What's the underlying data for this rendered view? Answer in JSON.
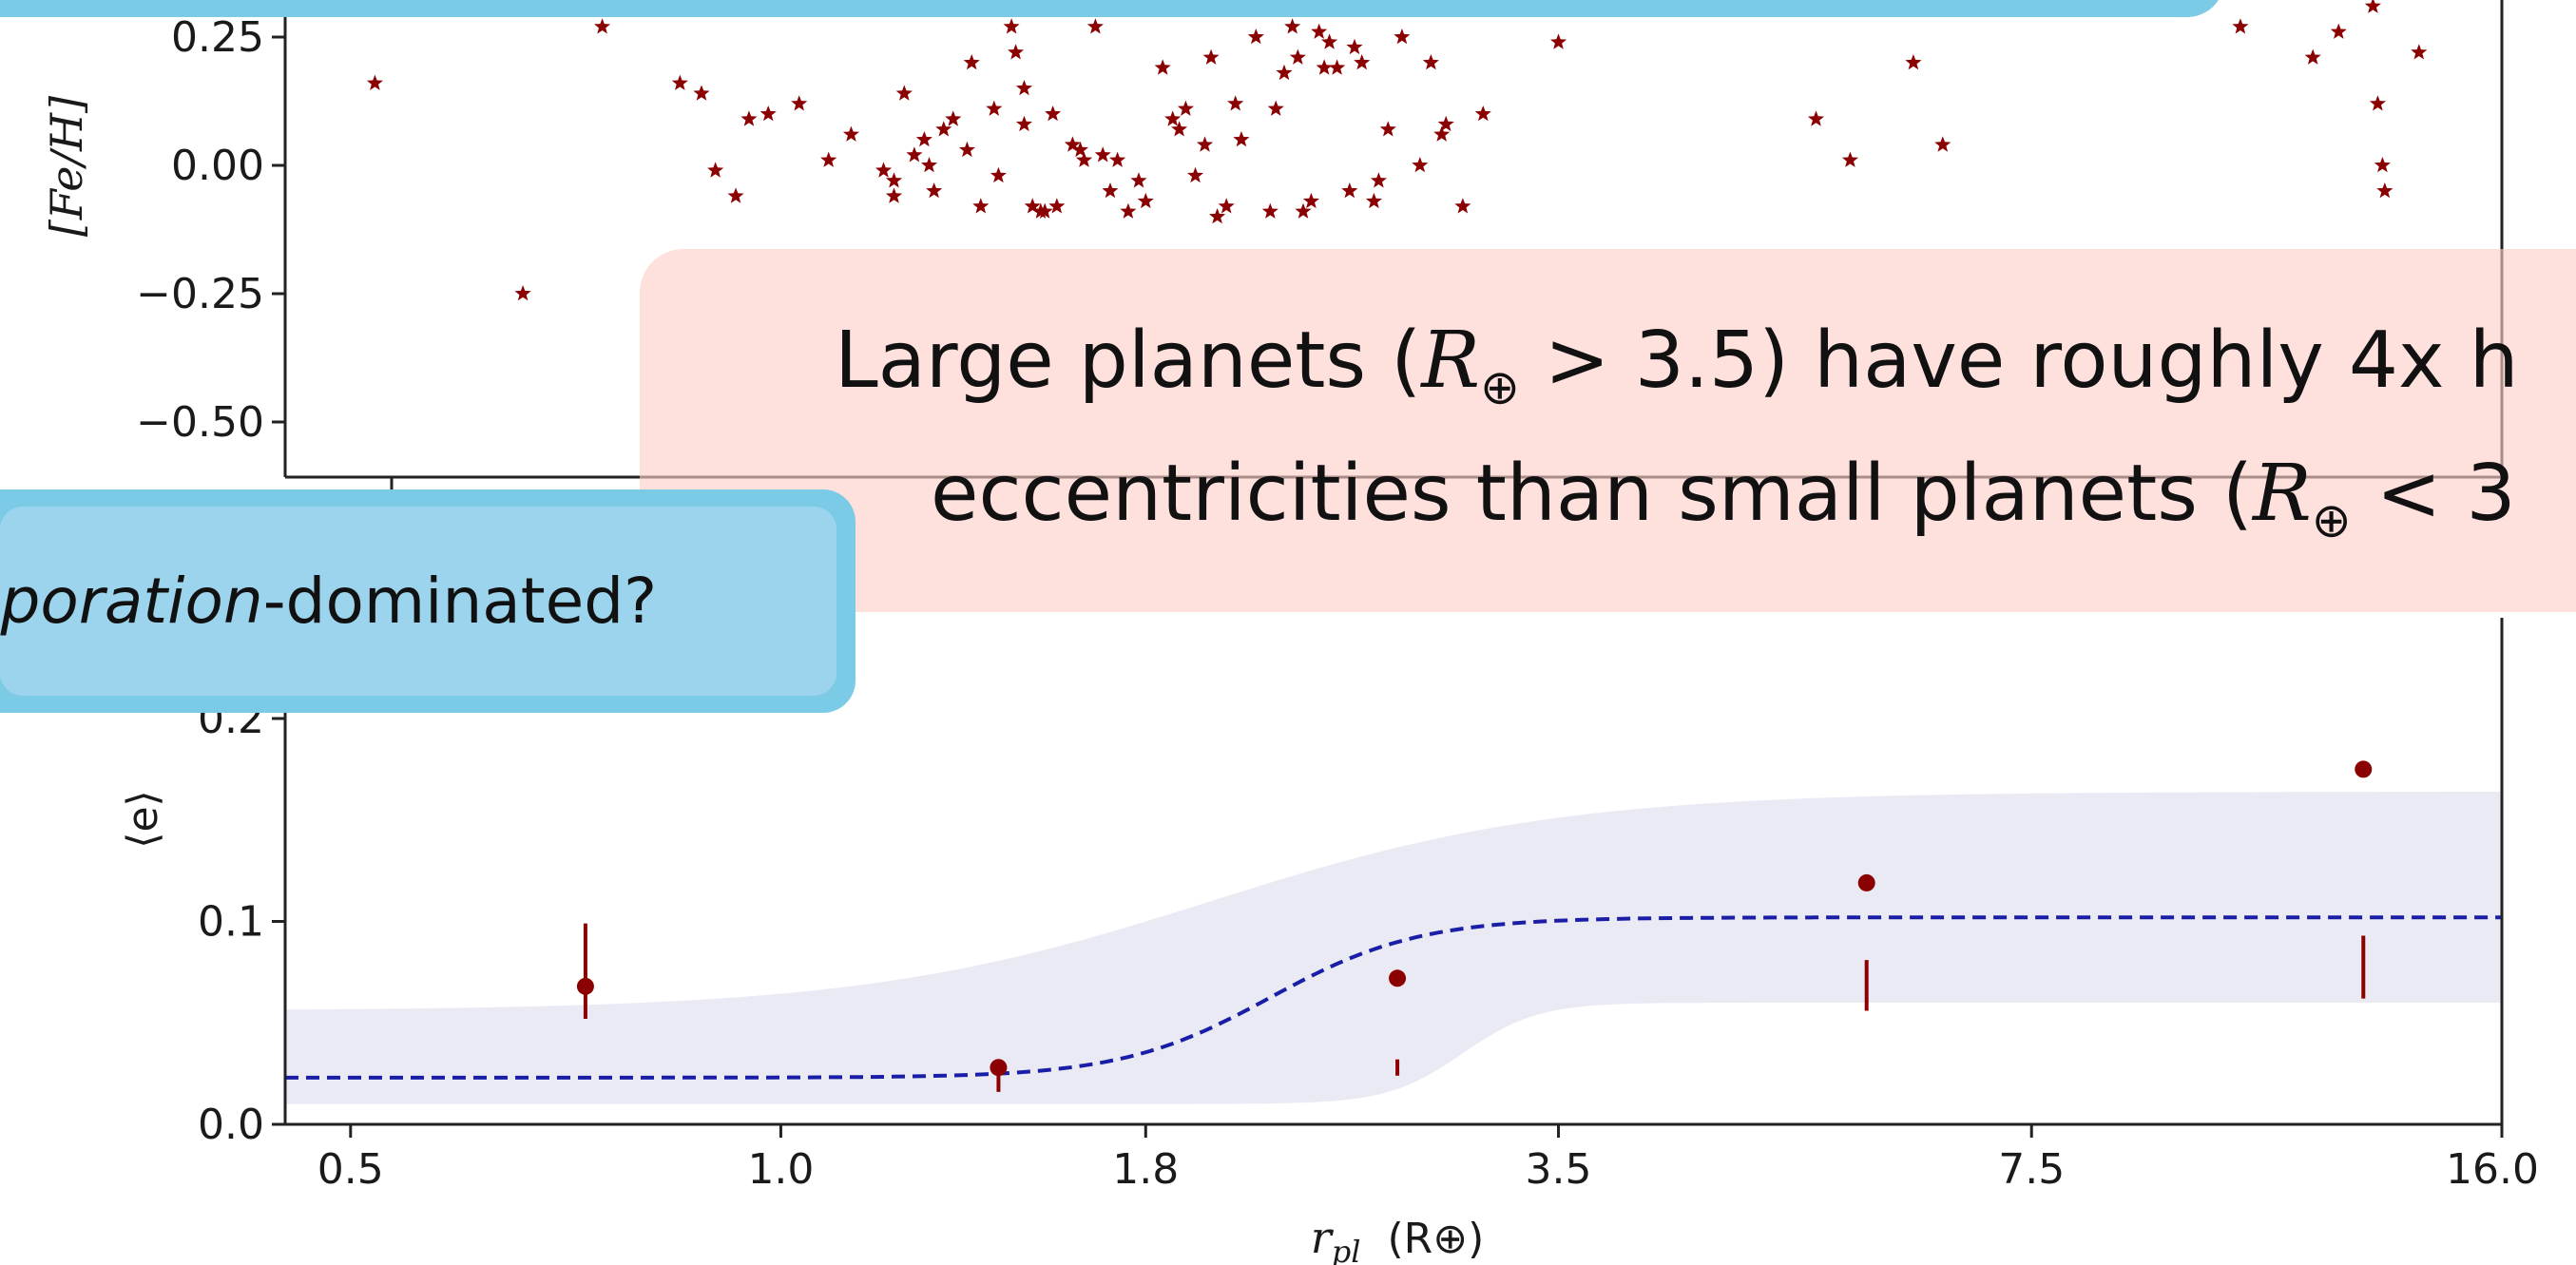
{
  "colors": {
    "scatter": "#8b0000",
    "fit_line": "#1a1ea6",
    "band": "#e9eaf4",
    "callout_blue": "#7ccbe6",
    "callout_blue_inner": "#9bd4ec",
    "callout_pink": "#fdcdc8"
  },
  "callouts": {
    "blue": {
      "prefix": "aporation",
      "suffix": "-dominated?"
    },
    "pink": {
      "line1_pre": "Large planets (",
      "line1_sym": "R",
      "line1_sub": "⊕",
      "line1_post": " > 3.5) have roughly 4x h",
      "line2_pre": "eccentricities than small planets (",
      "line2_sym": "R",
      "line2_sub": "⊕",
      "line2_post": " < 3"
    }
  },
  "chart_data": [
    {
      "type": "scatter",
      "ylabel": "[Fe/H]",
      "ylim": [
        -0.6,
        0.3
      ],
      "y_ticks": [
        "0.25",
        "0.00",
        "−0.25",
        "−0.50"
      ],
      "y_tick_values": [
        0.25,
        0.0,
        -0.25,
        -0.5
      ],
      "marker": "star",
      "points": [
        [
          0.52,
          0.16
        ],
        [
          0.75,
          0.27
        ],
        [
          0.66,
          -0.25
        ],
        [
          0.85,
          0.16
        ],
        [
          0.88,
          0.14
        ],
        [
          0.9,
          -0.01
        ],
        [
          0.95,
          0.09
        ],
        [
          0.98,
          0.1
        ],
        [
          0.93,
          -0.06
        ],
        [
          1.03,
          0.12
        ],
        [
          1.08,
          0.01
        ],
        [
          1.12,
          0.06
        ],
        [
          1.18,
          -0.01
        ],
        [
          1.2,
          -0.03
        ],
        [
          1.2,
          -0.06
        ],
        [
          1.22,
          0.14
        ],
        [
          1.24,
          0.02
        ],
        [
          1.26,
          0.05
        ],
        [
          1.27,
          0.0
        ],
        [
          1.28,
          -0.05
        ],
        [
          1.3,
          0.07
        ],
        [
          1.32,
          0.09
        ],
        [
          1.35,
          0.03
        ],
        [
          1.36,
          0.2
        ],
        [
          1.38,
          -0.08
        ],
        [
          1.41,
          0.11
        ],
        [
          1.42,
          -0.02
        ],
        [
          1.45,
          0.27
        ],
        [
          1.46,
          0.22
        ],
        [
          1.48,
          0.15
        ],
        [
          1.48,
          0.08
        ],
        [
          1.5,
          -0.08
        ],
        [
          1.52,
          -0.09
        ],
        [
          1.53,
          -0.09
        ],
        [
          1.55,
          0.1
        ],
        [
          1.56,
          -0.08
        ],
        [
          1.6,
          0.04
        ],
        [
          1.62,
          0.03
        ],
        [
          1.63,
          0.01
        ],
        [
          1.66,
          0.27
        ],
        [
          1.68,
          0.02
        ],
        [
          1.7,
          -0.05
        ],
        [
          1.72,
          0.01
        ],
        [
          1.75,
          -0.09
        ],
        [
          1.78,
          -0.03
        ],
        [
          1.8,
          -0.07
        ],
        [
          1.85,
          0.19
        ],
        [
          1.88,
          0.09
        ],
        [
          1.9,
          0.07
        ],
        [
          1.92,
          0.11
        ],
        [
          1.95,
          -0.02
        ],
        [
          1.98,
          0.04
        ],
        [
          2.0,
          0.21
        ],
        [
          2.02,
          -0.1
        ],
        [
          2.05,
          -0.08
        ],
        [
          2.08,
          0.12
        ],
        [
          2.1,
          0.05
        ],
        [
          2.15,
          0.25
        ],
        [
          2.2,
          -0.09
        ],
        [
          2.22,
          0.11
        ],
        [
          2.25,
          0.18
        ],
        [
          2.28,
          0.27
        ],
        [
          2.3,
          0.21
        ],
        [
          2.32,
          -0.09
        ],
        [
          2.35,
          -0.07
        ],
        [
          2.38,
          0.26
        ],
        [
          2.4,
          0.19
        ],
        [
          2.42,
          0.24
        ],
        [
          2.45,
          0.19
        ],
        [
          2.5,
          -0.05
        ],
        [
          2.52,
          0.23
        ],
        [
          2.55,
          0.2
        ],
        [
          2.6,
          -0.07
        ],
        [
          2.62,
          -0.03
        ],
        [
          2.66,
          0.07
        ],
        [
          2.72,
          0.25
        ],
        [
          2.8,
          0.0
        ],
        [
          2.85,
          0.2
        ],
        [
          2.9,
          0.06
        ],
        [
          2.92,
          0.08
        ],
        [
          3.0,
          -0.08
        ],
        [
          3.1,
          0.1
        ],
        [
          3.5,
          0.24
        ],
        [
          5.3,
          0.09
        ],
        [
          5.6,
          0.01
        ],
        [
          6.2,
          0.2
        ],
        [
          6.5,
          0.04
        ],
        [
          10.5,
          0.27
        ],
        [
          11.8,
          0.21
        ],
        [
          12.3,
          0.26
        ],
        [
          13.0,
          0.31
        ],
        [
          13.1,
          0.12
        ],
        [
          13.2,
          0.0
        ],
        [
          13.25,
          -0.05
        ],
        [
          14.0,
          0.22
        ]
      ]
    },
    {
      "type": "line",
      "xlabel": "r_pl  (R⊕)",
      "xlabel_main": "r",
      "xlabel_sub": "pl",
      "xlabel_unit": "(R⊕)",
      "ylabel": "⟨e⟩",
      "x_scale": "log",
      "xlim": [
        0.45,
        16.0
      ],
      "ylim": [
        0.0,
        0.2
      ],
      "x_ticks": [
        "0.5",
        "1.0",
        "1.8",
        "3.5",
        "7.5",
        "16.0"
      ],
      "x_tick_values": [
        0.5,
        1.0,
        1.8,
        3.5,
        7.5,
        16.0
      ],
      "y_ticks": [
        "0.0",
        "0.1",
        "0.2"
      ],
      "y_tick_values": [
        0.0,
        0.1,
        0.2
      ],
      "series": [
        {
          "kind": "errorbar",
          "x": [
            0.73,
            1.42,
            2.7,
            5.75,
            12.8
          ],
          "y": [
            0.068,
            0.028,
            0.072,
            0.119,
            0.175
          ],
          "yerr_low": [
            0.052,
            0.016,
            0.024,
            0.056,
            0.062
          ],
          "yerr_high": [
            0.099,
            0.026,
            0.032,
            0.081,
            0.093
          ]
        },
        {
          "kind": "fit",
          "style": "dashed",
          "low": 0.023,
          "high": 0.102,
          "transition": 2.2
        },
        {
          "kind": "band",
          "lower_left": 0.01,
          "lower_right": 0.06,
          "upper_left": 0.056,
          "upper_right": 0.164
        }
      ]
    }
  ]
}
